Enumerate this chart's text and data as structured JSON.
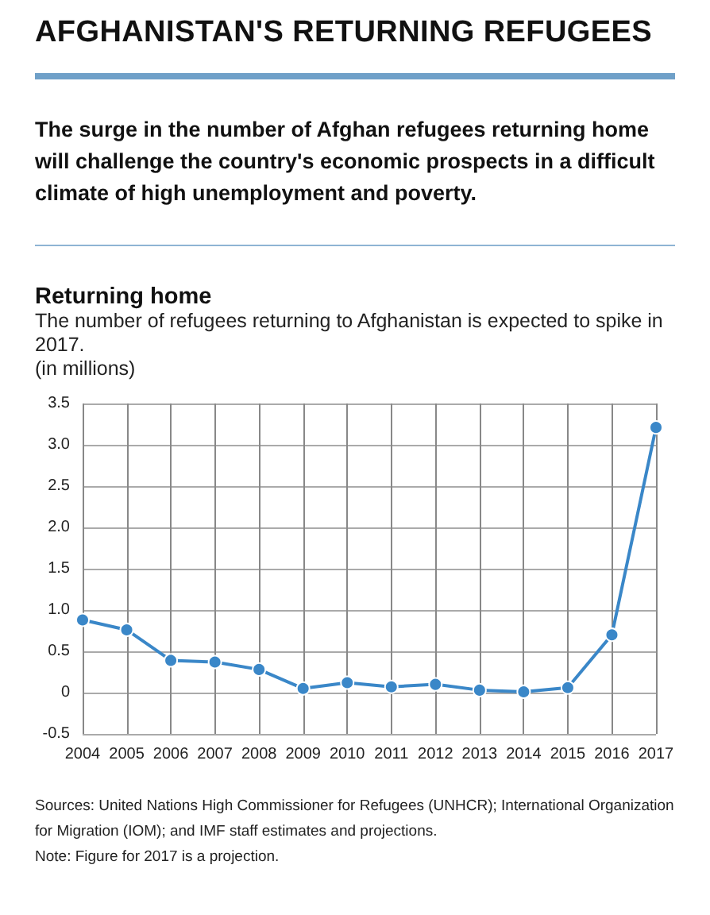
{
  "chart_data": {
    "type": "line",
    "title": "AFGHANISTAN'S RETURNING REFUGEES",
    "subtitle": "The surge in the number of Afghan refugees returning home will challenge the country's economic prospects in a difficult climate of high unemployment and poverty.",
    "annotations": [
      "Returning home",
      "The number of refugees returning to Afghanistan is expected to spike in 2017.",
      "Sources: United Nations High Commissioner for Refugees (UNHCR); International Organization for Migration (IOM); and IMF staff estimates and projections.",
      "Note: Figure for 2017 is a projection."
    ],
    "ylabel": "(in millions)",
    "categories": [
      "2004",
      "2005",
      "2006",
      "2007",
      "2008",
      "2009",
      "2010",
      "2011",
      "2012",
      "2013",
      "2014",
      "2015",
      "2016",
      "2017"
    ],
    "series": [
      {
        "color": "#3a87c8",
        "values": [
          0.88,
          0.76,
          0.39,
          0.37,
          0.28,
          0.05,
          0.12,
          0.07,
          0.1,
          0.03,
          0.01,
          0.06,
          0.7,
          3.21
        ]
      }
    ],
    "ylim": [
      -0.5,
      3.5
    ],
    "yticks": [
      {
        "value": -0.5,
        "label": "-0.5"
      },
      0,
      {
        "value": 0.5,
        "label": "0.5"
      },
      {
        "value": 1,
        "label": "1.0"
      },
      {
        "value": 1.5,
        "label": "1.5"
      },
      {
        "value": 2,
        "label": "2.0"
      },
      {
        "value": 2.5,
        "label": "2.5"
      },
      {
        "value": 3,
        "label": "3.0"
      },
      {
        "value": 3.5,
        "label": "3.5"
      }
    ],
    "grid": true,
    "marker": "circle",
    "line_style": "solid"
  }
}
